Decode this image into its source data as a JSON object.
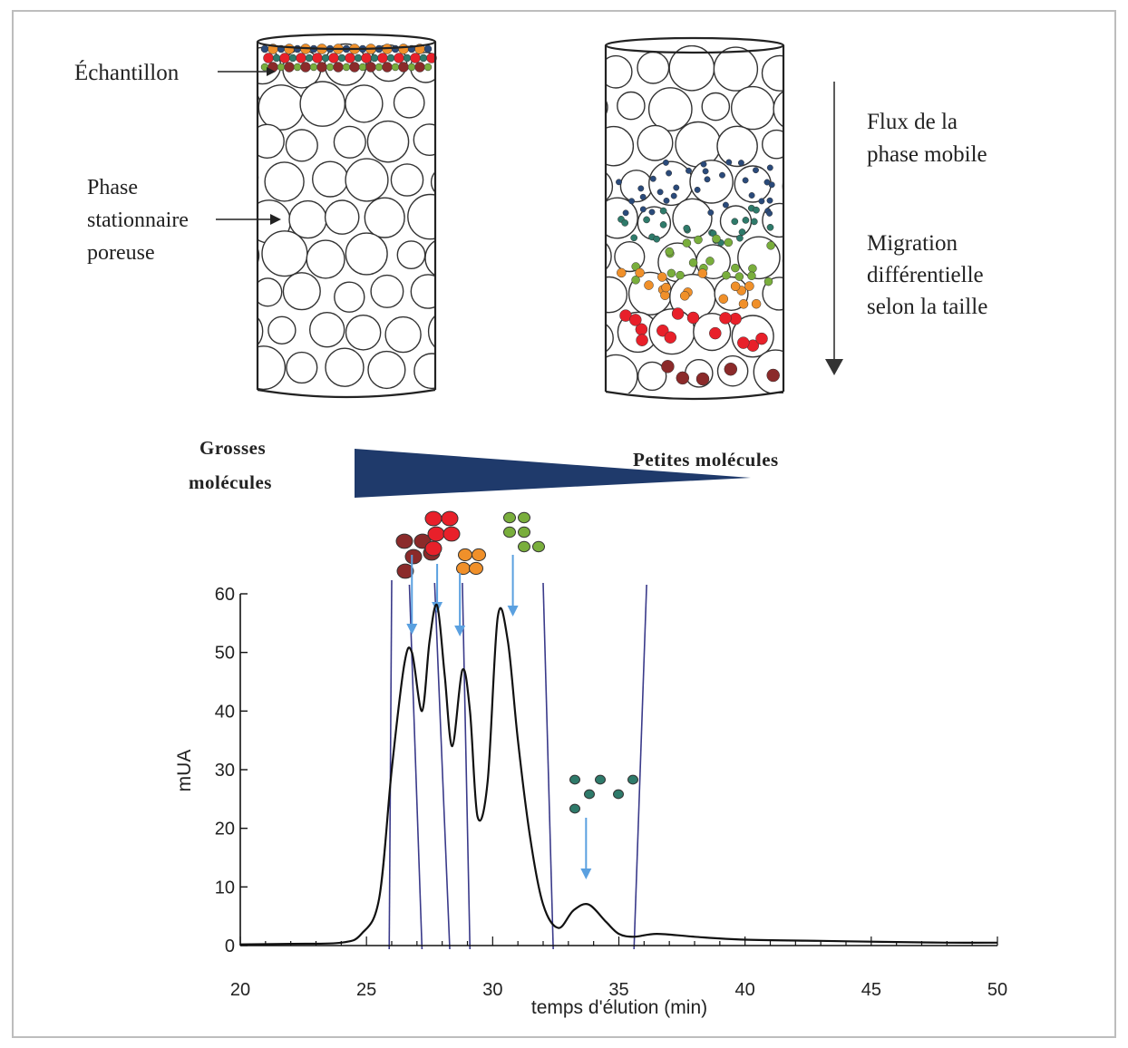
{
  "labels": {
    "sample": "Échantillon",
    "stationary_line1": "Phase",
    "stationary_line2": "stationnaire",
    "stationary_line3": "poreuse",
    "flow_line1": "Flux de la",
    "flow_line2": "phase mobile",
    "migration_line1": "Migration",
    "migration_line2": "différentielle",
    "migration_line3": "selon la taille",
    "large_line1": "Grosses",
    "large_line2": "molécules",
    "small": "Petites molécules"
  },
  "colors": {
    "dark_red": "#8b2a2a",
    "red": "#e8202a",
    "orange": "#f0902a",
    "green": "#79ae3c",
    "teal": "#2e7a6a",
    "navy": "#2a4a7a",
    "wedge": "#1f3a6b",
    "arrow_blue": "#5aa0e0",
    "divider": "#3a3a8a"
  },
  "chart_data": {
    "type": "line",
    "ylabel": "mUA",
    "xlabel": "temps d'élution (min)",
    "xlim": [
      20,
      50
    ],
    "ylim": [
      0,
      60
    ],
    "x_ticks": [
      20,
      25,
      30,
      35,
      40,
      45,
      50
    ],
    "y_ticks": [
      0,
      10,
      20,
      30,
      40,
      50,
      60
    ],
    "series": [
      {
        "x": [
          20,
          22,
          24,
          24.8,
          25.5,
          26.0,
          26.5,
          26.8,
          27.2,
          27.5,
          27.8,
          28.1,
          28.4,
          28.8,
          29.1,
          29.4,
          29.8,
          30.2,
          30.6,
          31.0,
          31.5,
          32.0,
          32.6,
          33.2,
          33.8,
          34.5,
          35.0,
          35.6,
          36.5,
          38,
          40,
          43,
          46,
          48,
          50
        ],
        "y": [
          0.2,
          0.3,
          0.5,
          2,
          8,
          30,
          48,
          50,
          40,
          52,
          58,
          46,
          34,
          47,
          40,
          22,
          28,
          56,
          52,
          35,
          18,
          7,
          3,
          6,
          7,
          4,
          2,
          1.5,
          2,
          1.5,
          1,
          0.8,
          0.6,
          0.5,
          0.5
        ]
      }
    ],
    "boundaries": [
      25.9,
      27.2,
      28.3,
      29.1,
      32.4,
      35.6
    ],
    "vlines": [
      26.0,
      26.7,
      27.7,
      28.8,
      32.0,
      36.1
    ],
    "arrows": [
      26.8,
      27.8,
      28.7,
      30.8,
      33.7
    ]
  }
}
